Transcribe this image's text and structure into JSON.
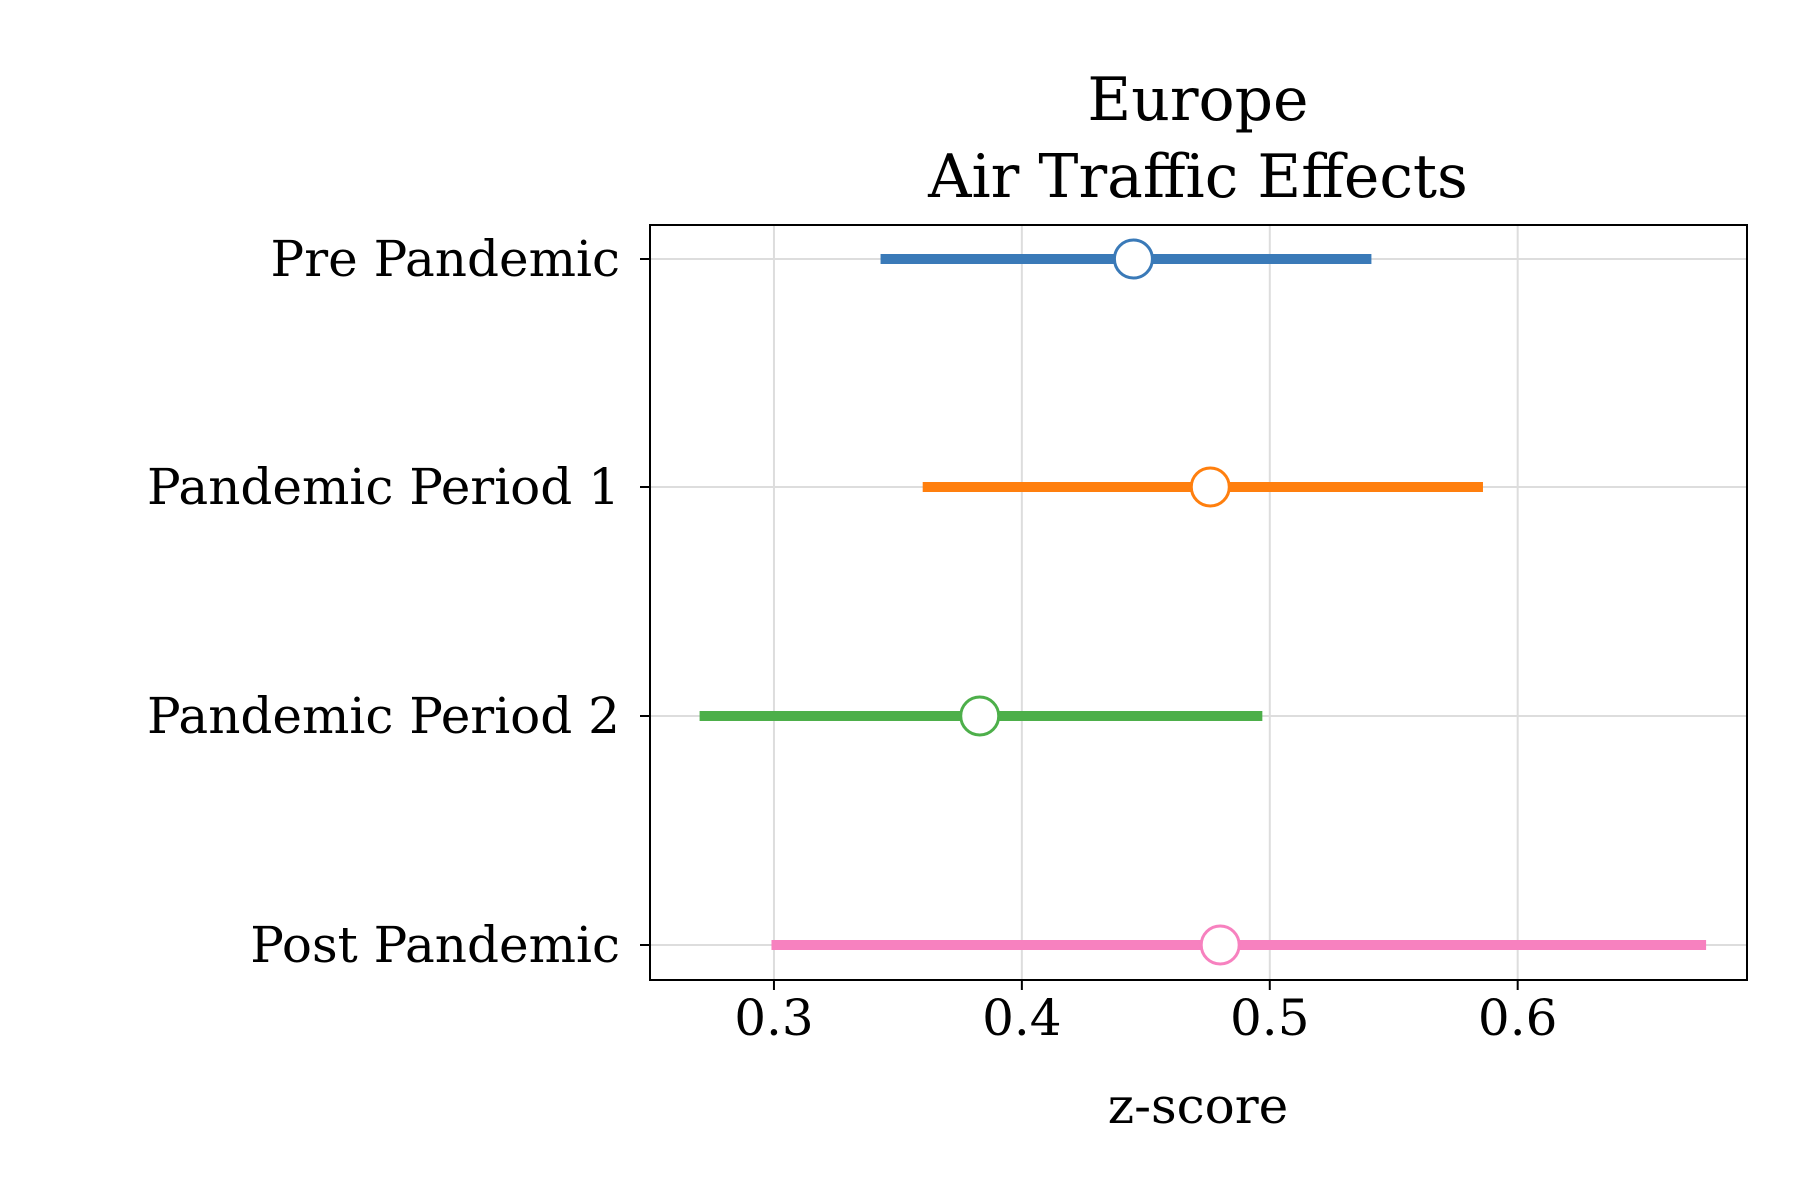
{
  "chart_data": {
    "type": "forest",
    "title_lines": [
      "Europe",
      "Air Traffic Effects"
    ],
    "xlabel": "z-score",
    "ylabel": "",
    "xlim": [
      0.25,
      0.6925
    ],
    "xticks": [
      0.3,
      0.4,
      0.5,
      0.6
    ],
    "xtick_labels": [
      "0.3",
      "0.4",
      "0.5",
      "0.6"
    ],
    "grid": true,
    "categories": [
      "Pre Pandemic",
      "Pandemic Period 1",
      "Pandemic Period 2",
      "Post Pandemic"
    ],
    "points": [
      {
        "category": "Pre Pandemic",
        "estimate": 0.445,
        "ci_low": 0.343,
        "ci_high": 0.541,
        "color": "#3a7ab8"
      },
      {
        "category": "Pandemic Period 1",
        "estimate": 0.476,
        "ci_low": 0.36,
        "ci_high": 0.586,
        "color": "#ff7f0e"
      },
      {
        "category": "Pandemic Period 2",
        "estimate": 0.383,
        "ci_low": 0.27,
        "ci_high": 0.497,
        "color": "#4daf4a"
      },
      {
        "category": "Post Pandemic",
        "estimate": 0.48,
        "ci_low": 0.299,
        "ci_high": 0.676,
        "color": "#f781bf"
      }
    ]
  }
}
